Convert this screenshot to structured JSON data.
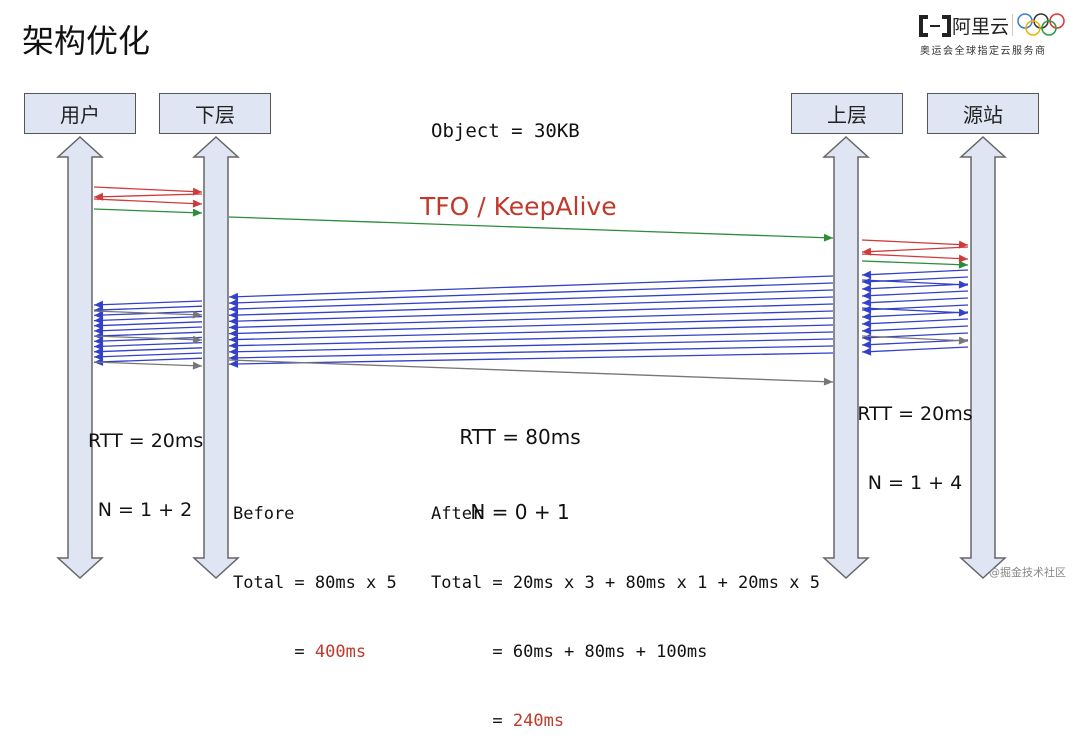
{
  "slide": {
    "title": "架构优化",
    "logo": {
      "brand": "阿里云",
      "tagline": "奥运会全球指定云服务商"
    },
    "watermark": "@掘金技术社区"
  },
  "nodes": [
    {
      "id": "user",
      "label": "用户"
    },
    {
      "id": "lower",
      "label": "下层"
    },
    {
      "id": "upper",
      "label": "上层"
    },
    {
      "id": "origin",
      "label": "源站"
    }
  ],
  "object_label": "Object = 30KB",
  "tfo_label": "TFO / KeepAlive",
  "segments": {
    "left": {
      "rtt": "RTT = 20ms",
      "n": "N = 1 + 2"
    },
    "middle": {
      "rtt": "RTT = 80ms",
      "n": "N = 0 + 1"
    },
    "right": {
      "rtt": "RTT = 20ms",
      "n": "N = 1 + 4"
    }
  },
  "before": {
    "heading": "Before",
    "line1": "Total = 80ms x 5",
    "line2_prefix": "      = ",
    "result": "400ms"
  },
  "after": {
    "heading": "After",
    "line1": "Total = 20ms x 3 + 80ms x 1 + 20ms x 5",
    "line2": "      = 60ms + 80ms + 100ms",
    "line3_prefix": "      = ",
    "result": "240ms"
  },
  "colors": {
    "handshake": "#d03a3a",
    "request": "#2e8b3a",
    "data": "#3340c8",
    "ack": "#777777",
    "highlight": "#c0392b",
    "node_fill": "#dfe5f3"
  }
}
